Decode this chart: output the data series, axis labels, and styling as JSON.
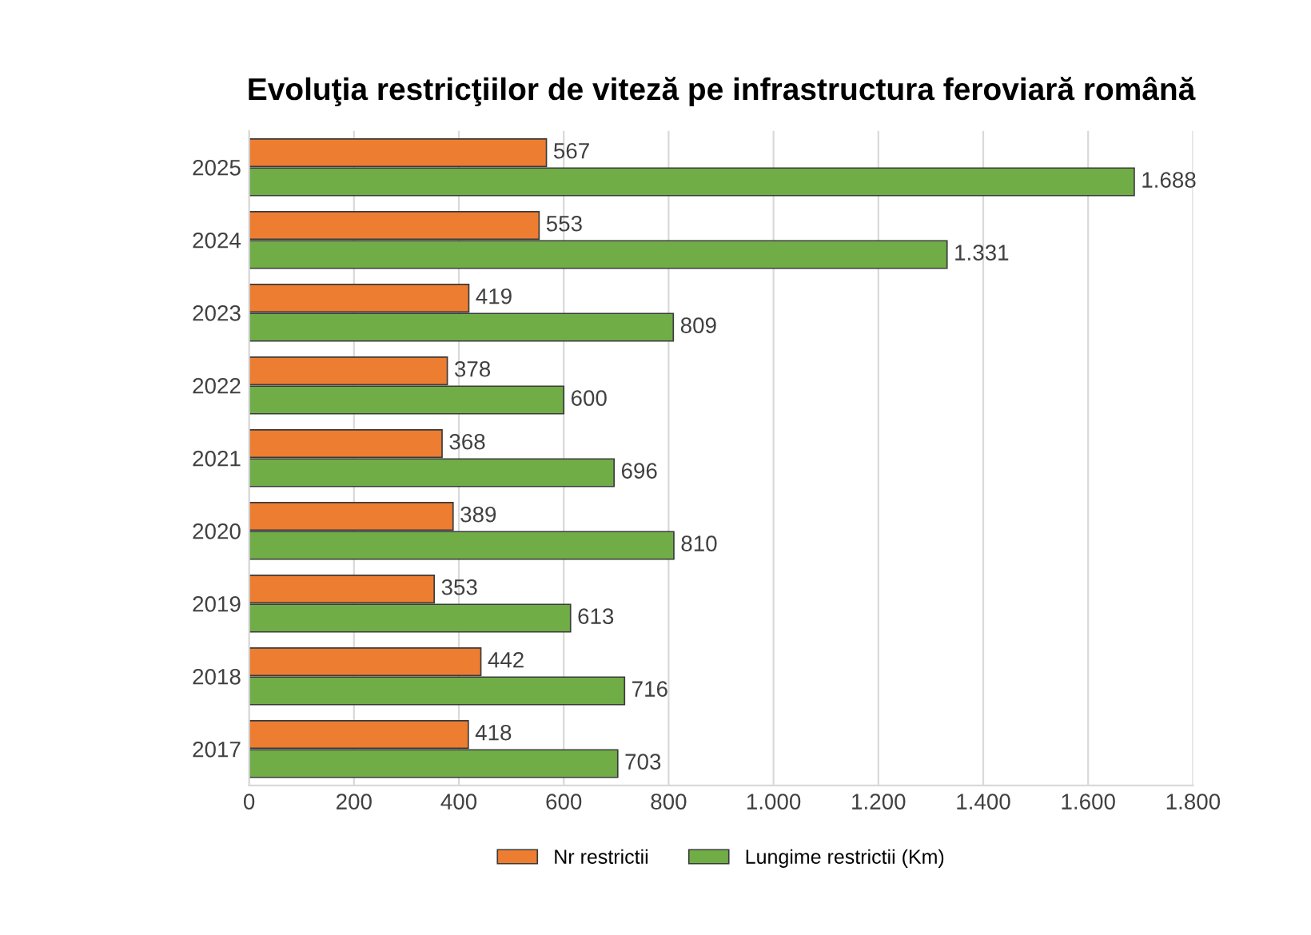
{
  "chart_data": {
    "type": "bar",
    "orientation": "horizontal",
    "title": "Evoluţia restricţiilor de viteză pe infrastructura feroviară română",
    "categories": [
      "2025",
      "2024",
      "2023",
      "2022",
      "2021",
      "2020",
      "2019",
      "2018",
      "2017"
    ],
    "series": [
      {
        "name": "Nr restrictii",
        "color": "#ed7d31",
        "values": [
          567,
          553,
          419,
          378,
          368,
          389,
          353,
          442,
          418
        ],
        "value_labels": [
          "567",
          "553",
          "419",
          "378",
          "368",
          "389",
          "353",
          "442",
          "418"
        ]
      },
      {
        "name": "Lungime restrictii (Km)",
        "color": "#70ad47",
        "values": [
          1688,
          1331,
          809,
          600,
          696,
          810,
          613,
          716,
          703
        ],
        "value_labels": [
          "1.688",
          "1.331",
          "809",
          "600",
          "696",
          "810",
          "613",
          "716",
          "703"
        ]
      }
    ],
    "xlim": [
      0,
      1800
    ],
    "xticks": [
      0,
      200,
      400,
      600,
      800,
      {
        "value": 1000,
        "label": "1.000"
      },
      {
        "value": 1200,
        "label": "1.200"
      },
      {
        "value": 1400,
        "label": "1.400"
      },
      {
        "value": 1600,
        "label": "1.600"
      },
      {
        "value": 1800,
        "label": "1.800"
      }
    ],
    "grid": "x",
    "legend": "bottom"
  }
}
